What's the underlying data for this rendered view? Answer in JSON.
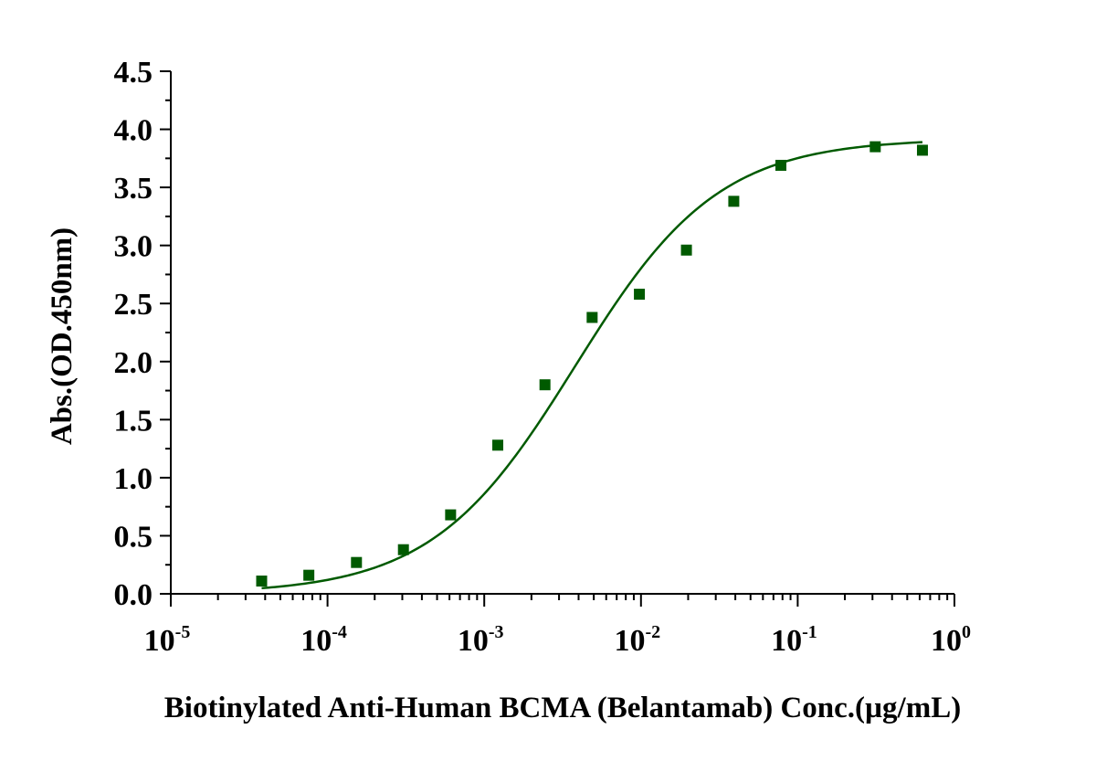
{
  "chart_data": {
    "type": "scatter",
    "title": "",
    "xlabel": "Biotinylated Anti-Human BCMA (Belantamab)  Conc.(µg/mL)",
    "ylabel": "Abs.(OD.450nm)",
    "x_scale": "log",
    "xlim": [
      1e-05,
      1
    ],
    "ylim": [
      0,
      4.5
    ],
    "x_ticks": [
      {
        "base": "10",
        "exp": "-5",
        "value": 1e-05
      },
      {
        "base": "10",
        "exp": "-4",
        "value": 0.0001
      },
      {
        "base": "10",
        "exp": "-3",
        "value": 0.001
      },
      {
        "base": "10",
        "exp": "-2",
        "value": 0.01
      },
      {
        "base": "10",
        "exp": "-1",
        "value": 0.1
      },
      {
        "base": "10",
        "exp": "0",
        "value": 1
      }
    ],
    "y_ticks": [
      "0.0",
      "0.5",
      "1.0",
      "1.5",
      "2.0",
      "2.5",
      "3.0",
      "3.5",
      "4.0",
      "4.5"
    ],
    "grid": false,
    "legend": "none",
    "series": [
      {
        "color": "#005a00",
        "marker": "square",
        "x": [
          3.8e-05,
          7.6e-05,
          0.000153,
          0.000305,
          0.00061,
          0.00122,
          0.00244,
          0.00488,
          0.00977,
          0.0195,
          0.0391,
          0.0781,
          0.3125,
          0.625
        ],
        "y": [
          0.11,
          0.16,
          0.27,
          0.38,
          0.68,
          1.28,
          1.8,
          2.38,
          2.58,
          2.96,
          3.38,
          3.69,
          3.85,
          3.82
        ]
      }
    ],
    "fit_curve": {
      "color": "#005a00",
      "model": "4PL",
      "bottom": 0.0,
      "top": 3.92,
      "ec50": 0.0038,
      "hill": 0.95
    }
  }
}
